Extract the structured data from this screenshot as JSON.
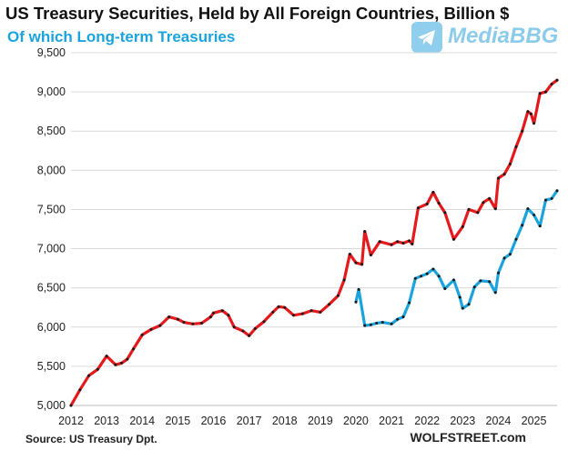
{
  "header": {
    "title": "US Treasury Securities, Held by All Foreign Countries, Billion $",
    "subtitle": "Of which Long-term Treasuries"
  },
  "watermark": {
    "text": "MediaBBG",
    "icon": "telegram-icon"
  },
  "footer": {
    "source": "Source: US Treasury  Dpt.",
    "credit": "WOLFSTREET.com"
  },
  "colors": {
    "total_line": "#e3191b",
    "longterm_line": "#1ba3dd",
    "markers": "#1a1a1a",
    "gridline": "#d9d9d9",
    "subtitle": "#1aa3dc"
  },
  "chart_data": {
    "type": "line",
    "title": "US Treasury Securities, Held by All Foreign Countries, Billion $",
    "subtitle": "Of which Long-term Treasuries",
    "xlabel": "",
    "ylabel": "",
    "xlim": [
      2012.0,
      2025.65
    ],
    "ylim": [
      5000,
      9500
    ],
    "y_ticks": [
      5000,
      5500,
      6000,
      6500,
      7000,
      7500,
      8000,
      8500,
      9000,
      9500
    ],
    "y_tick_labels": [
      "5,000",
      "5,500",
      "6,000",
      "6,500",
      "7,000",
      "7,500",
      "8,000",
      "8,500",
      "9,000",
      "9,500"
    ],
    "x_ticks": [
      2012,
      2013,
      2014,
      2015,
      2016,
      2017,
      2018,
      2019,
      2020,
      2021,
      2022,
      2023,
      2024,
      2025
    ],
    "x_tick_labels": [
      "2012",
      "2013",
      "2014",
      "2015",
      "2016",
      "2017",
      "2018",
      "2019",
      "2020",
      "2021",
      "2022",
      "2023",
      "2024",
      "2025"
    ],
    "grid": "horizontal",
    "legend": "none",
    "series": [
      {
        "key": "total",
        "x": [
          2012.0,
          2012.25,
          2012.5,
          2012.75,
          2013.0,
          2013.25,
          2013.42,
          2013.58,
          2013.75,
          2014.0,
          2014.25,
          2014.5,
          2014.75,
          2015.0,
          2015.17,
          2015.42,
          2015.67,
          2015.92,
          2016.0,
          2016.25,
          2016.42,
          2016.58,
          2016.83,
          2017.0,
          2017.17,
          2017.42,
          2017.67,
          2017.83,
          2018.0,
          2018.25,
          2018.5,
          2018.75,
          2019.0,
          2019.25,
          2019.5,
          2019.67,
          2019.83,
          2020.0,
          2020.17,
          2020.25,
          2020.42,
          2020.67,
          2021.0,
          2021.17,
          2021.33,
          2021.5,
          2021.58,
          2021.75,
          2022.0,
          2022.17,
          2022.33,
          2022.5,
          2022.75,
          2023.0,
          2023.17,
          2023.42,
          2023.58,
          2023.75,
          2023.92,
          2024.0,
          2024.17,
          2024.33,
          2024.5,
          2024.67,
          2024.83,
          2024.92,
          2025.0,
          2025.17,
          2025.33,
          2025.5,
          2025.65
        ],
        "values": [
          5000,
          5200,
          5380,
          5460,
          5630,
          5520,
          5540,
          5590,
          5720,
          5900,
          5970,
          6020,
          6130,
          6100,
          6060,
          6040,
          6050,
          6130,
          6180,
          6210,
          6150,
          6000,
          5950,
          5890,
          5980,
          6070,
          6190,
          6260,
          6250,
          6150,
          6170,
          6210,
          6190,
          6290,
          6400,
          6600,
          6930,
          6820,
          6800,
          7220,
          6920,
          7090,
          7050,
          7090,
          7070,
          7100,
          7060,
          7520,
          7570,
          7720,
          7580,
          7460,
          7120,
          7280,
          7500,
          7460,
          7590,
          7640,
          7510,
          7900,
          7950,
          8080,
          8300,
          8500,
          8750,
          8720,
          8600,
          8980,
          9000,
          9100,
          9150
        ]
      },
      {
        "key": "long_term",
        "x": [
          2020.0,
          2020.08,
          2020.25,
          2020.42,
          2020.58,
          2020.75,
          2021.0,
          2021.17,
          2021.33,
          2021.5,
          2021.67,
          2021.83,
          2022.0,
          2022.17,
          2022.33,
          2022.5,
          2022.75,
          2022.92,
          2023.0,
          2023.17,
          2023.33,
          2023.5,
          2023.75,
          2023.92,
          2024.0,
          2024.17,
          2024.33,
          2024.5,
          2024.67,
          2024.83,
          2025.0,
          2025.17,
          2025.33,
          2025.5,
          2025.65
        ],
        "values": [
          6320,
          6480,
          6020,
          6030,
          6050,
          6060,
          6040,
          6100,
          6130,
          6310,
          6620,
          6650,
          6680,
          6740,
          6650,
          6490,
          6600,
          6380,
          6240,
          6290,
          6510,
          6590,
          6580,
          6440,
          6690,
          6880,
          6930,
          7120,
          7300,
          7510,
          7430,
          7290,
          7620,
          7640,
          7740
        ]
      }
    ]
  }
}
